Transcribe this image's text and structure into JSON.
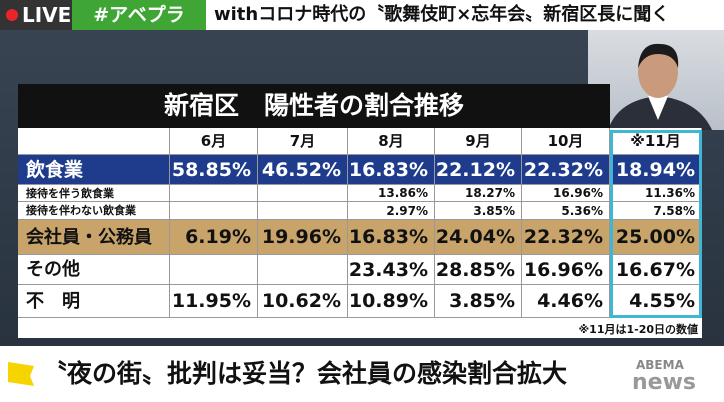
{
  "header": {
    "live": "LIVE",
    "hashtag": "#アベプラ",
    "title": "withコロナ時代の〝歌舞伎町×忘年会〟新宿区長に聞く"
  },
  "table": {
    "title": "新宿区　陽性者の割合推移",
    "columns": [
      "6月",
      "7月",
      "8月",
      "9月",
      "10月",
      "※11月"
    ],
    "rows": [
      [
        "飲食業",
        "58.85%",
        "46.52%",
        "16.83%",
        "22.12%",
        "22.32%",
        "18.94%"
      ],
      [
        "接待を伴う飲食業",
        null,
        null,
        "13.86%",
        "18.27%",
        "16.96%",
        "11.36%"
      ],
      [
        "接待を伴わない飲食業",
        null,
        null,
        "2.97%",
        "3.85%",
        "5.36%",
        "7.58%"
      ],
      [
        "会社員・公務員",
        "6.19%",
        "19.96%",
        "16.83%",
        "24.04%",
        "22.32%",
        "25.00%"
      ],
      [
        "その他",
        null,
        null,
        "23.43%",
        "28.85%",
        "16.96%",
        "16.67%"
      ],
      [
        "不　明",
        "11.95%",
        "10.62%",
        "10.89%",
        "3.85%",
        "4.46%",
        "4.55%"
      ]
    ],
    "note": "※11月は1-20日の数値"
  },
  "caption": "〝夜の街〟批判は妥当？会社員の感染割合拡大",
  "logo": {
    "brand": "ABEMA",
    "product": "news"
  }
}
